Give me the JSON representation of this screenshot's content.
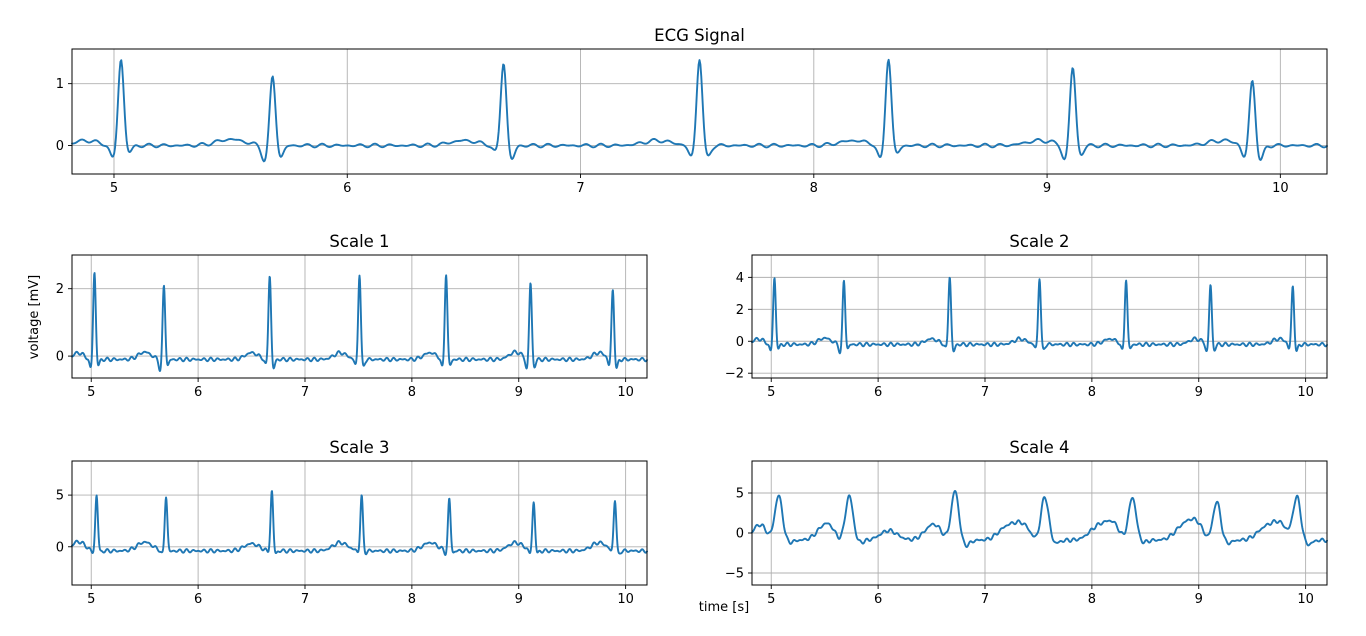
{
  "figure": {
    "xlabel": "time [s]",
    "ylabel": "voltage [mV]",
    "line_color": "#1f77b4"
  },
  "chart_data": [
    {
      "type": "line",
      "title": "ECG Signal",
      "xlim": [
        4.82,
        10.2
      ],
      "ylim": [
        -0.46,
        1.56
      ],
      "xticks": [
        5,
        6,
        7,
        8,
        9,
        10
      ],
      "yticks": [
        0,
        1
      ],
      "grid": true,
      "baseline": 0.0,
      "spikes": [
        {
          "t": 5.03,
          "peak": 1.4,
          "pre": -0.22,
          "post": -0.12
        },
        {
          "t": 5.68,
          "peak": 1.13,
          "pre": -0.26,
          "post": -0.2
        },
        {
          "t": 6.67,
          "peak": 1.35,
          "pre": -0.12,
          "post": -0.24
        },
        {
          "t": 7.51,
          "peak": 1.42,
          "pre": -0.2,
          "post": -0.2
        },
        {
          "t": 8.32,
          "peak": 1.42,
          "pre": -0.25,
          "post": -0.14
        },
        {
          "t": 9.11,
          "peak": 1.27,
          "pre": -0.26,
          "post": -0.16
        },
        {
          "t": 9.88,
          "peak": 1.06,
          "pre": -0.22,
          "post": -0.26
        }
      ],
      "waves": [
        {
          "t": 4.88,
          "a": 0.08,
          "w": 0.05
        },
        {
          "t": 5.5,
          "a": 0.1,
          "w": 0.06
        },
        {
          "t": 6.5,
          "a": 0.08,
          "w": 0.06
        },
        {
          "t": 7.33,
          "a": 0.08,
          "w": 0.06
        },
        {
          "t": 8.17,
          "a": 0.08,
          "w": 0.06
        },
        {
          "t": 8.97,
          "a": 0.08,
          "w": 0.06
        },
        {
          "t": 9.75,
          "a": 0.08,
          "w": 0.06
        }
      ]
    },
    {
      "type": "line",
      "title": "Scale 1",
      "xlim": [
        4.82,
        10.2
      ],
      "ylim": [
        -0.65,
        3.0
      ],
      "xticks": [
        5,
        6,
        7,
        8,
        9,
        10
      ],
      "yticks": [
        0,
        2
      ],
      "grid": true,
      "baseline": -0.1,
      "spikes": [
        {
          "t": 5.03,
          "peak": 2.5,
          "pre": -0.4,
          "post": -0.3
        },
        {
          "t": 5.68,
          "peak": 2.1,
          "pre": -0.45,
          "post": -0.3
        },
        {
          "t": 6.67,
          "peak": 2.42,
          "pre": -0.3,
          "post": -0.4
        },
        {
          "t": 7.51,
          "peak": 2.45,
          "pre": -0.3,
          "post": -0.35
        },
        {
          "t": 8.32,
          "peak": 2.45,
          "pre": -0.4,
          "post": -0.3
        },
        {
          "t": 9.11,
          "peak": 2.18,
          "pre": -0.45,
          "post": -0.35
        },
        {
          "t": 9.88,
          "peak": 1.97,
          "pre": -0.35,
          "post": -0.4
        }
      ],
      "waves": [
        {
          "t": 4.88,
          "a": 0.2,
          "w": 0.05
        },
        {
          "t": 5.5,
          "a": 0.22,
          "w": 0.06
        },
        {
          "t": 6.5,
          "a": 0.2,
          "w": 0.06
        },
        {
          "t": 7.33,
          "a": 0.2,
          "w": 0.06
        },
        {
          "t": 8.17,
          "a": 0.2,
          "w": 0.06
        },
        {
          "t": 8.97,
          "a": 0.22,
          "w": 0.06
        },
        {
          "t": 9.75,
          "a": 0.2,
          "w": 0.06
        }
      ]
    },
    {
      "type": "line",
      "title": "Scale 2",
      "xlim": [
        4.82,
        10.2
      ],
      "ylim": [
        -2.3,
        5.4
      ],
      "xticks": [
        5,
        6,
        7,
        8,
        9,
        10
      ],
      "yticks": [
        -2,
        0,
        2,
        4
      ],
      "grid": true,
      "baseline": -0.2,
      "spikes": [
        {
          "t": 5.03,
          "peak": 4.0,
          "pre": -0.7,
          "post": -0.5
        },
        {
          "t": 5.68,
          "peak": 3.8,
          "pre": -0.75,
          "post": -0.5
        },
        {
          "t": 6.67,
          "peak": 4.1,
          "pre": -0.5,
          "post": -0.7
        },
        {
          "t": 7.51,
          "peak": 4.0,
          "pre": -0.5,
          "post": -0.6
        },
        {
          "t": 8.32,
          "peak": 3.9,
          "pre": -0.7,
          "post": -0.5
        },
        {
          "t": 9.11,
          "peak": 3.55,
          "pre": -0.75,
          "post": -0.6
        },
        {
          "t": 9.88,
          "peak": 3.45,
          "pre": -0.6,
          "post": -0.7
        }
      ],
      "waves": [
        {
          "t": 4.88,
          "a": 0.35,
          "w": 0.05
        },
        {
          "t": 5.5,
          "a": 0.4,
          "w": 0.06
        },
        {
          "t": 6.5,
          "a": 0.35,
          "w": 0.06
        },
        {
          "t": 7.33,
          "a": 0.35,
          "w": 0.06
        },
        {
          "t": 8.17,
          "a": 0.35,
          "w": 0.06
        },
        {
          "t": 8.97,
          "a": 0.35,
          "w": 0.06
        },
        {
          "t": 9.75,
          "a": 0.35,
          "w": 0.06
        }
      ]
    },
    {
      "type": "line",
      "title": "Scale 3",
      "xlim": [
        4.82,
        10.2
      ],
      "ylim": [
        -3.7,
        8.3
      ],
      "xticks": [
        5,
        6,
        7,
        8,
        9,
        10
      ],
      "yticks": [
        0,
        5
      ],
      "grid": true,
      "baseline": -0.4,
      "spikes": [
        {
          "t": 5.05,
          "peak": 5.0,
          "pre": -0.7,
          "post": -0.5
        },
        {
          "t": 5.7,
          "peak": 4.9,
          "pre": -0.8,
          "post": -0.5
        },
        {
          "t": 6.69,
          "peak": 5.4,
          "pre": -0.6,
          "post": -0.7
        },
        {
          "t": 7.53,
          "peak": 4.9,
          "pre": -0.6,
          "post": -0.6
        },
        {
          "t": 8.35,
          "peak": 4.6,
          "pre": -0.8,
          "post": -0.6
        },
        {
          "t": 9.14,
          "peak": 4.3,
          "pre": -0.8,
          "post": -0.7
        },
        {
          "t": 9.9,
          "peak": 4.5,
          "pre": -0.7,
          "post": -0.8
        }
      ],
      "waves": [
        {
          "t": 4.88,
          "a": 0.9,
          "w": 0.06
        },
        {
          "t": 5.5,
          "a": 0.85,
          "w": 0.07
        },
        {
          "t": 6.5,
          "a": 0.7,
          "w": 0.07
        },
        {
          "t": 7.33,
          "a": 0.8,
          "w": 0.07
        },
        {
          "t": 8.17,
          "a": 0.8,
          "w": 0.07
        },
        {
          "t": 8.97,
          "a": 0.8,
          "w": 0.07
        },
        {
          "t": 9.75,
          "a": 0.8,
          "w": 0.07
        }
      ]
    },
    {
      "type": "line",
      "title": "Scale 4",
      "xlim": [
        4.82,
        10.2
      ],
      "ylim": [
        -6.5,
        9.0
      ],
      "xticks": [
        5,
        6,
        7,
        8,
        9,
        10
      ],
      "yticks": [
        -5,
        0,
        5
      ],
      "grid": true,
      "baseline": -0.9,
      "spikes": [
        {
          "t": 5.07,
          "peak": 4.6,
          "pre": -1.3,
          "post": -1.2,
          "w": 0.035
        },
        {
          "t": 5.73,
          "peak": 4.6,
          "pre": -1.4,
          "post": -1.2,
          "w": 0.035
        },
        {
          "t": 6.72,
          "peak": 5.2,
          "pre": -1.2,
          "post": -1.6,
          "w": 0.035
        },
        {
          "t": 7.56,
          "peak": 4.5,
          "pre": -1.3,
          "post": -1.3,
          "w": 0.035
        },
        {
          "t": 8.38,
          "peak": 4.3,
          "pre": -1.5,
          "post": -1.2,
          "w": 0.035
        },
        {
          "t": 9.17,
          "peak": 3.8,
          "pre": -1.5,
          "post": -1.3,
          "w": 0.035
        },
        {
          "t": 9.92,
          "peak": 4.2,
          "pre": -1.3,
          "post": -1.5,
          "w": 0.035
        }
      ],
      "waves": [
        {
          "t": 4.9,
          "a": 2.0,
          "w": 0.07
        },
        {
          "t": 5.52,
          "a": 2.1,
          "w": 0.08
        },
        {
          "t": 6.1,
          "a": 1.2,
          "w": 0.08
        },
        {
          "t": 6.52,
          "a": 2.0,
          "w": 0.08
        },
        {
          "t": 7.2,
          "a": 1.5,
          "w": 0.08
        },
        {
          "t": 7.35,
          "a": 1.9,
          "w": 0.08
        },
        {
          "t": 8.05,
          "a": 1.5,
          "w": 0.08
        },
        {
          "t": 8.2,
          "a": 2.1,
          "w": 0.08
        },
        {
          "t": 8.85,
          "a": 1.5,
          "w": 0.08
        },
        {
          "t": 8.98,
          "a": 2.1,
          "w": 0.08
        },
        {
          "t": 9.62,
          "a": 1.4,
          "w": 0.08
        },
        {
          "t": 9.77,
          "a": 2.1,
          "w": 0.08
        }
      ]
    }
  ]
}
